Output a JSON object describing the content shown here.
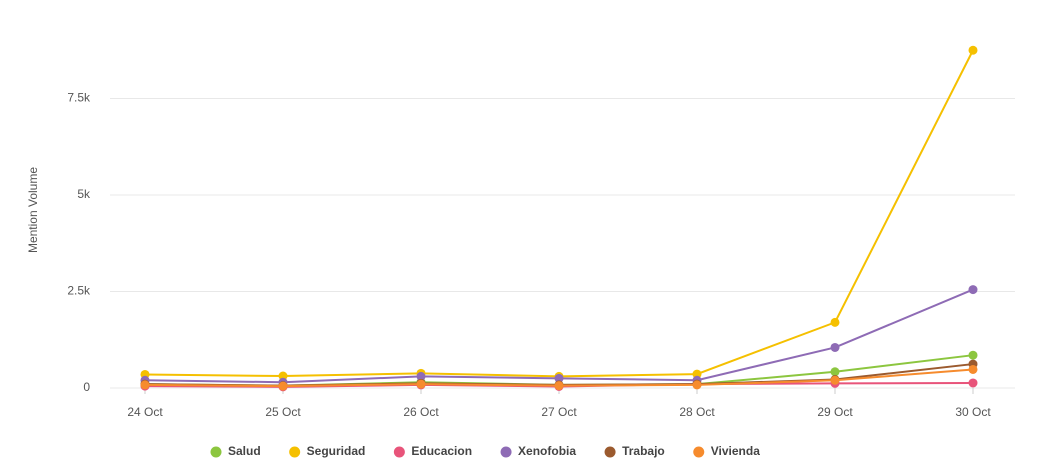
{
  "chart_data": {
    "type": "line",
    "y_label": "Mention Volume",
    "categories": [
      "24 Oct",
      "25 Oct",
      "26 Oct",
      "27 Oct",
      "28 Oct",
      "29 Oct",
      "30 Oct"
    ],
    "series": [
      {
        "name": "Salud",
        "color": "#8cc63f",
        "values": [
          100,
          60,
          150,
          80,
          100,
          420,
          850
        ]
      },
      {
        "name": "Seguridad",
        "color": "#f5c000",
        "values": [
          350,
          310,
          380,
          300,
          360,
          1700,
          8750
        ]
      },
      {
        "name": "Educacion",
        "color": "#e8547a",
        "values": [
          50,
          30,
          80,
          40,
          100,
          120,
          130
        ]
      },
      {
        "name": "Xenofobia",
        "color": "#8e6bb5",
        "values": [
          200,
          150,
          300,
          250,
          200,
          1050,
          2550
        ]
      },
      {
        "name": "Trabajo",
        "color": "#9b5a2e",
        "values": [
          100,
          60,
          120,
          80,
          100,
          220,
          620
        ]
      },
      {
        "name": "Vivienda",
        "color": "#f68b2d",
        "values": [
          80,
          50,
          100,
          60,
          80,
          200,
          480
        ]
      }
    ],
    "ylim": [
      0,
      10000
    ],
    "yticks": [
      0,
      {
        "value": 2500,
        "label": "2.5k"
      },
      {
        "value": 5000,
        "label": "5k"
      },
      {
        "value": 7500,
        "label": "7.5k"
      }
    ],
    "grid": true
  }
}
